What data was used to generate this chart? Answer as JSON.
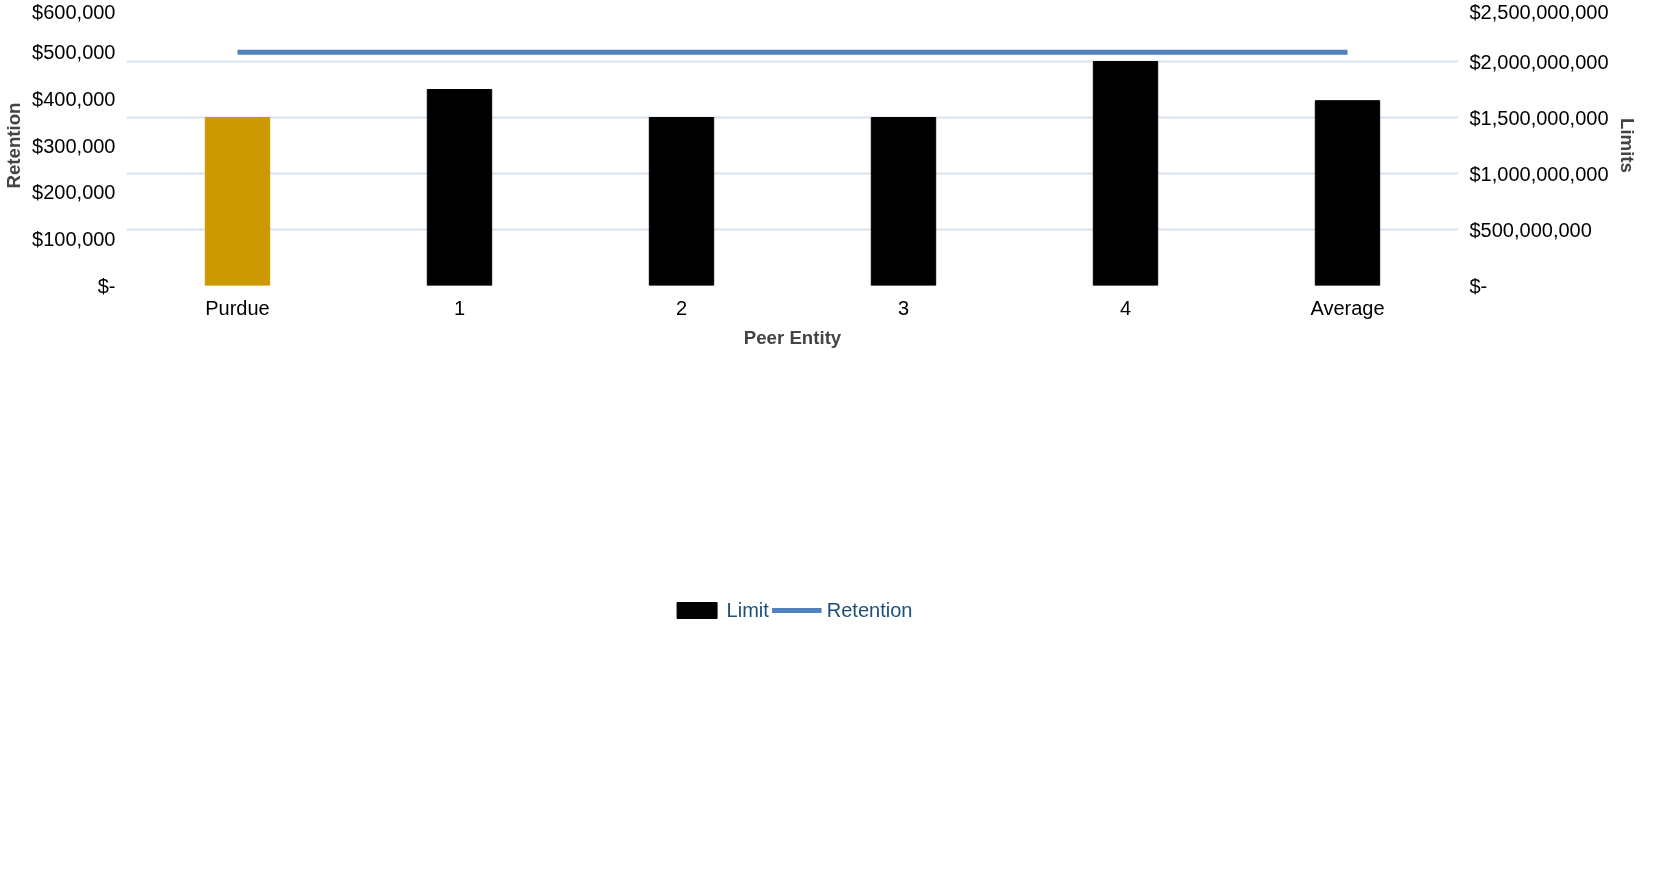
{
  "chart_data": {
    "type": "bar",
    "xlabel": "Peer Entity",
    "ylabel": "Retention",
    "y2label": "Limits",
    "categories": [
      "Purdue",
      "1",
      "2",
      "3",
      "4",
      "Average"
    ],
    "series": [
      {
        "name": "Limit",
        "axis": "y2",
        "color": "#000000",
        "colors": [
          "#cc9900",
          "#000000",
          "#000000",
          "#000000",
          "#000000",
          "#000000"
        ],
        "values": [
          1500000000,
          1750000000,
          1500000000,
          1500000000,
          2000000000,
          1650000000
        ]
      },
      {
        "name": "Retention",
        "type": "line",
        "axis": "y",
        "color": "#4f81bd",
        "values": [
          500000,
          500000,
          500000,
          500000,
          500000,
          500000
        ]
      }
    ],
    "ylim": [
      0,
      600000
    ],
    "yticks": [
      {
        "value": 0,
        "label": "$-"
      },
      {
        "value": 100000,
        "label": "$100,000"
      },
      {
        "value": 200000,
        "label": "$200,000"
      },
      {
        "value": 300000,
        "label": "$300,000"
      },
      {
        "value": 400000,
        "label": "$400,000"
      },
      {
        "value": 500000,
        "label": "$500,000"
      },
      {
        "value": 600000,
        "label": "$600,000"
      }
    ],
    "y2lim": [
      0,
      2500000000
    ],
    "y2ticks": [
      {
        "value": 0,
        "label": "$-"
      },
      {
        "value": 500000000,
        "label": "$500,000,000"
      },
      {
        "value": 1000000000,
        "label": "$1,000,000,000"
      },
      {
        "value": 1500000000,
        "label": "$1,500,000,000"
      },
      {
        "value": 2000000000,
        "label": "$2,000,000,000"
      },
      {
        "value": 2500000000,
        "label": "$2,500,000,000"
      }
    ],
    "grid": "y2",
    "legend": "bottom"
  }
}
